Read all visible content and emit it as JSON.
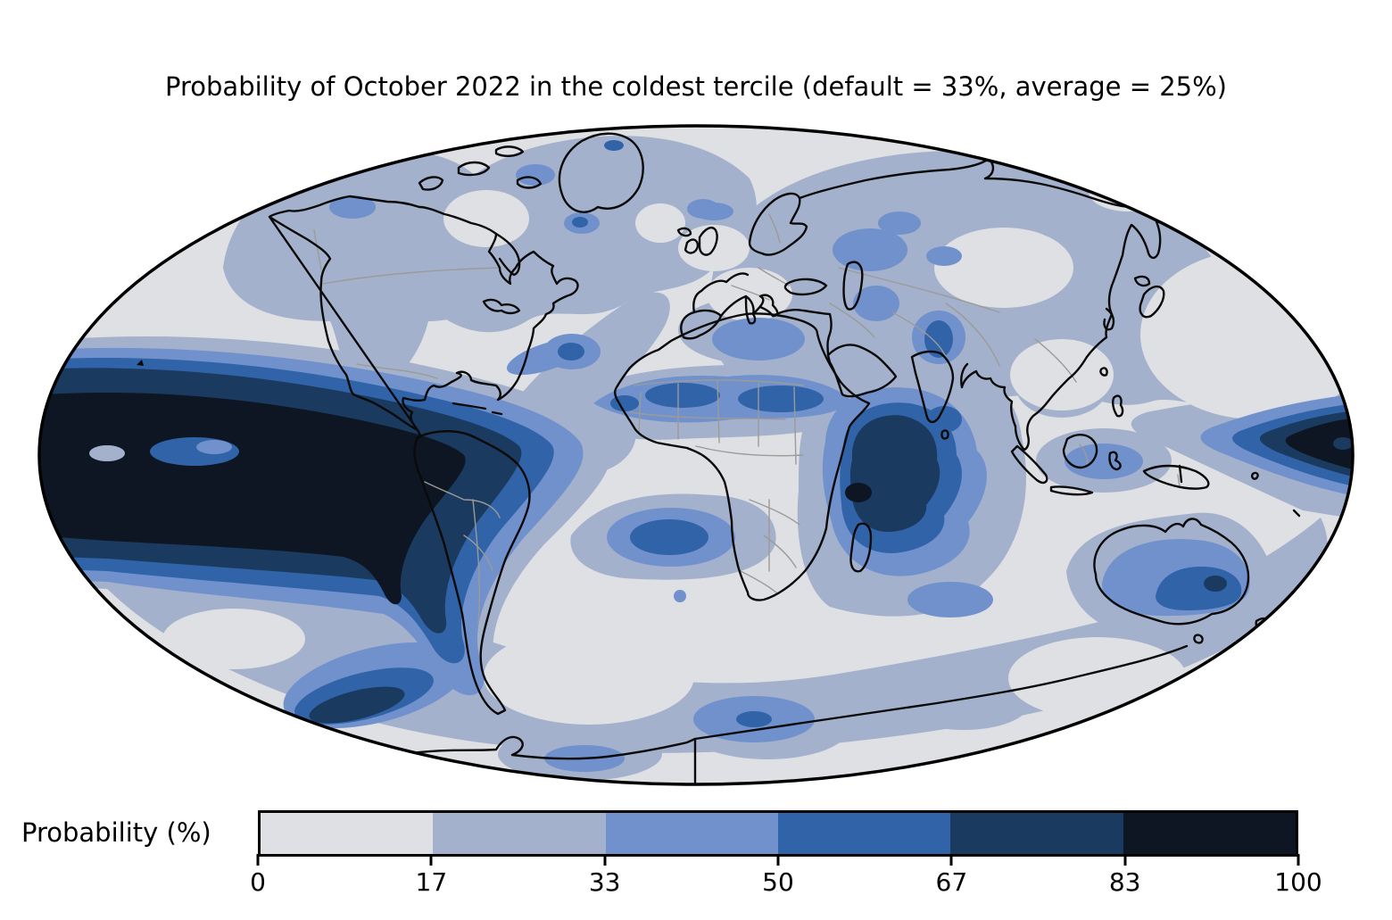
{
  "title": "Probability of October 2022 in the coldest tercile (default = 33%, average = 25%)",
  "colorbar": {
    "label": "Probability (%)",
    "ticks": [
      "0",
      "17",
      "33",
      "50",
      "67",
      "83",
      "100"
    ],
    "colors": [
      "#dee0e3",
      "#a4b1cd",
      "#7191cc",
      "#3063a8",
      "#1b3a5f",
      "#0d1622"
    ],
    "outline_color": "#000000"
  },
  "map": {
    "projection": "mollweide",
    "ocean_land_outline_color": "#0a0a0a",
    "country_border_color": "#9b9b97",
    "background_bin_color": "#dee0e3"
  },
  "chart_data": {
    "type": "heatmap",
    "subtype": "filled-contour world map (Mollweide projection)",
    "title": "Probability of October 2022 in the coldest tercile (default = 33%, average = 25%)",
    "colorbar_label": "Probability (%)",
    "units": "percent",
    "levels": [
      0,
      17,
      33,
      50,
      67,
      83,
      100
    ],
    "level_colors": [
      "#dee0e3",
      "#a4b1cd",
      "#7191cc",
      "#3063a8",
      "#1b3a5f",
      "#0d1622"
    ],
    "legend_position": "bottom",
    "notable_regions": [
      {
        "region": "Eastern equatorial Pacific (El Nino tongue, west of South America)",
        "probability_bin": "83-100"
      },
      {
        "region": "Equatorial Pacific at right map edge (date line)",
        "probability_bin": "83-100"
      },
      {
        "region": "Western Indian Ocean off East Africa / Madagascar",
        "probability_bin": "67-83 with small 83-100 core"
      },
      {
        "region": "Sahel band across Africa (~10-15N)",
        "probability_bin": "50-67"
      },
      {
        "region": "Eastern Australia interior",
        "probability_bin": "50-67 with small 67-83 spot"
      },
      {
        "region": "Southern Ocean southwest of South America",
        "probability_bin": "67-83"
      },
      {
        "region": "South Atlantic off Brazil",
        "probability_bin": "50-67"
      },
      {
        "region": "NW India / Pakistan",
        "probability_bin": "50-67"
      },
      {
        "region": "Central North Atlantic spot",
        "probability_bin": "50-67"
      },
      {
        "region": "Most continental mid- and high-latitudes",
        "probability_bin": "0-33"
      }
    ]
  }
}
